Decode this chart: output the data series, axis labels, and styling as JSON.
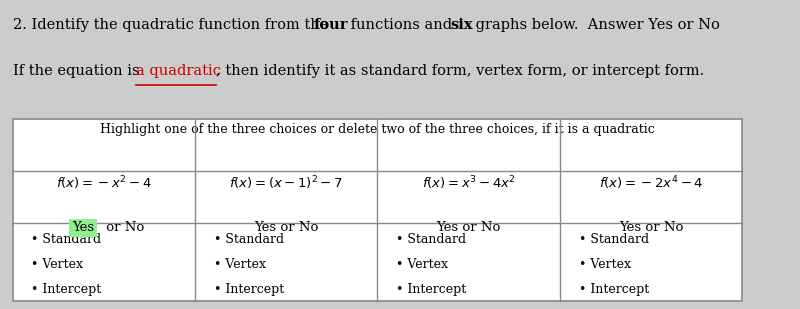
{
  "box_header": "Highlight one of the three choices or delete two of the three choices, if it is a quadratic",
  "functions_latex": [
    "$f(x)=-x^2-4$",
    "$f(x)=(x-1)^2-7$",
    "$f(x)=x^3-4x^2$",
    "$f(x)=-2x^4-4$"
  ],
  "yes_no": [
    "Yes or No",
    "Yes or No",
    "Yes or No",
    "Yes or No"
  ],
  "yes_highlighted": [
    true,
    false,
    false,
    false
  ],
  "bullet_items": [
    "Standard",
    "Vertex",
    "Intercept"
  ],
  "highlight_color": "#90EE90",
  "border_color": "#888888",
  "page_bg": "#cccccc",
  "underline_color": "#cc0000",
  "text_color": "#000000",
  "fontsize_title": 10.5,
  "fontsize_table": 9.5,
  "figsize": [
    8.0,
    3.09
  ],
  "dpi": 100
}
